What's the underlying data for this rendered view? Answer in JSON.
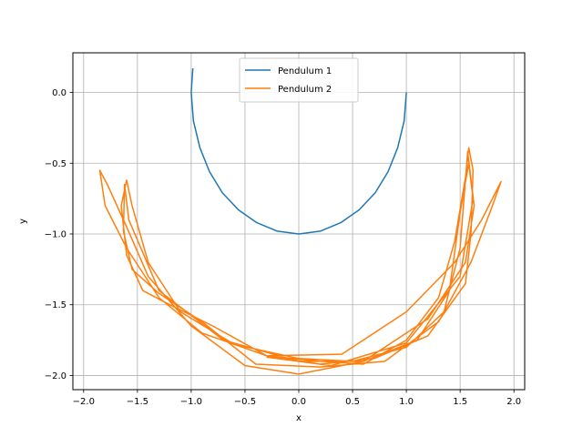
{
  "chart_data": {
    "type": "line",
    "title": "",
    "xlabel": "x",
    "ylabel": "y",
    "xlim": [
      -2.1,
      2.1
    ],
    "ylim": [
      -2.1,
      0.28
    ],
    "grid": true,
    "legend_position": "top-center",
    "x_ticks": [
      -2.0,
      -1.5,
      -1.0,
      -0.5,
      0.0,
      0.5,
      1.0,
      1.5,
      2.0
    ],
    "y_ticks": [
      -2.0,
      -1.5,
      -1.0,
      -0.5,
      0.0
    ],
    "x_tick_labels": [
      "−2.0",
      "−1.5",
      "−1.0",
      "−0.5",
      "0.0",
      "0.5",
      "1.0",
      "1.5",
      "2.0"
    ],
    "y_tick_labels": [
      "−2.0",
      "−1.5",
      "−1.0",
      "−0.5",
      "0.0"
    ],
    "series": [
      {
        "name": "Pendulum 1",
        "color": "#1f77b4",
        "points": [
          [
            1.0,
            0.0
          ],
          [
            0.98,
            -0.2
          ],
          [
            0.92,
            -0.39
          ],
          [
            0.83,
            -0.56
          ],
          [
            0.71,
            -0.71
          ],
          [
            0.56,
            -0.83
          ],
          [
            0.39,
            -0.92
          ],
          [
            0.2,
            -0.98
          ],
          [
            0.0,
            -1.0
          ],
          [
            -0.2,
            -0.98
          ],
          [
            -0.39,
            -0.92
          ],
          [
            -0.56,
            -0.83
          ],
          [
            -0.71,
            -0.71
          ],
          [
            -0.83,
            -0.56
          ],
          [
            -0.92,
            -0.39
          ],
          [
            -0.98,
            -0.2
          ],
          [
            -1.0,
            0.0
          ],
          [
            -0.985,
            0.17
          ]
        ]
      },
      {
        "name": "Pendulum 2",
        "color": "#ff7f0e",
        "points": [
          [
            -0.3,
            -1.86
          ],
          [
            0.2,
            -1.9
          ],
          [
            0.6,
            -1.92
          ],
          [
            1.0,
            -1.75
          ],
          [
            1.3,
            -1.45
          ],
          [
            1.45,
            -1.05
          ],
          [
            1.55,
            -0.6
          ],
          [
            1.58,
            -0.39
          ],
          [
            1.62,
            -0.55
          ],
          [
            1.6,
            -1.0
          ],
          [
            1.55,
            -1.35
          ],
          [
            1.2,
            -1.72
          ],
          [
            0.7,
            -1.88
          ],
          [
            0.2,
            -1.92
          ],
          [
            -0.3,
            -1.86
          ],
          [
            -0.8,
            -1.65
          ],
          [
            -1.2,
            -1.5
          ],
          [
            -1.45,
            -1.4
          ],
          [
            -1.6,
            -1.15
          ],
          [
            -1.65,
            -0.8
          ],
          [
            -1.6,
            -0.62
          ],
          [
            -1.55,
            -0.8
          ],
          [
            -1.4,
            -1.2
          ],
          [
            -1.1,
            -1.55
          ],
          [
            -0.6,
            -1.78
          ],
          [
            0.0,
            -1.88
          ],
          [
            0.5,
            -1.9
          ],
          [
            1.0,
            -1.8
          ],
          [
            1.35,
            -1.55
          ],
          [
            1.5,
            -1.1
          ],
          [
            1.57,
            -0.42
          ],
          [
            1.63,
            -0.8
          ],
          [
            1.55,
            -1.2
          ],
          [
            1.2,
            -1.6
          ],
          [
            0.6,
            -1.9
          ],
          [
            0.0,
            -1.99
          ],
          [
            -0.5,
            -1.93
          ],
          [
            -1.0,
            -1.65
          ],
          [
            -1.4,
            -1.3
          ],
          [
            -1.6,
            -0.95
          ],
          [
            -1.78,
            -0.65
          ],
          [
            -1.85,
            -0.55
          ],
          [
            -1.8,
            -0.8
          ],
          [
            -1.6,
            -1.1
          ],
          [
            -1.3,
            -1.45
          ],
          [
            -0.9,
            -1.7
          ],
          [
            -0.3,
            -1.86
          ],
          [
            0.4,
            -1.85
          ],
          [
            1.0,
            -1.55
          ],
          [
            1.45,
            -1.2
          ],
          [
            1.7,
            -0.9
          ],
          [
            1.88,
            -0.63
          ],
          [
            1.8,
            -0.8
          ],
          [
            1.6,
            -1.2
          ],
          [
            1.3,
            -1.62
          ],
          [
            0.8,
            -1.9
          ],
          [
            0.2,
            -1.94
          ],
          [
            -0.4,
            -1.92
          ],
          [
            -0.9,
            -1.62
          ],
          [
            -1.3,
            -1.42
          ],
          [
            -1.55,
            -1.25
          ],
          [
            -1.63,
            -0.98
          ],
          [
            -1.62,
            -0.65
          ],
          [
            -1.58,
            -0.9
          ],
          [
            -1.3,
            -1.4
          ],
          [
            -0.7,
            -1.75
          ],
          [
            0.0,
            -1.9
          ],
          [
            0.6,
            -1.9
          ],
          [
            1.1,
            -1.75
          ],
          [
            1.4,
            -1.4
          ],
          [
            1.5,
            -0.85
          ],
          [
            1.58,
            -0.5
          ],
          [
            1.62,
            -0.75
          ],
          [
            1.5,
            -1.3
          ],
          [
            1.0,
            -1.77
          ],
          [
            0.3,
            -1.93
          ],
          [
            -0.3,
            -1.87
          ]
        ]
      }
    ]
  }
}
